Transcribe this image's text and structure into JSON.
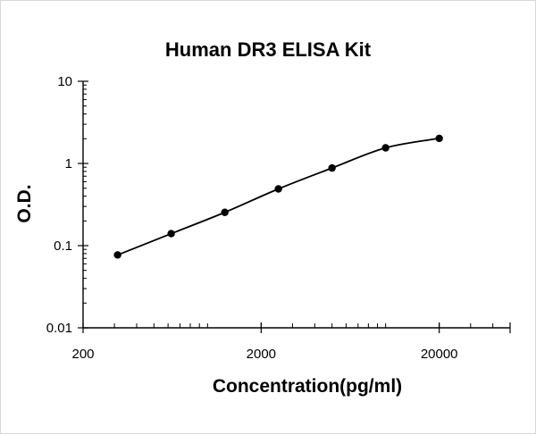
{
  "chart_data": {
    "type": "scatter",
    "title": "Human DR3 ELISA Kit",
    "xlabel": "Concentration(pg/ml)",
    "ylabel": "O.D.",
    "x_scale": "log",
    "y_scale": "log",
    "xlim": [
      200,
      50000
    ],
    "ylim": [
      0.01,
      10
    ],
    "x_ticks": [
      200,
      2000,
      20000
    ],
    "x_tick_labels": [
      "200",
      "2000",
      "20000"
    ],
    "y_ticks": [
      0.01,
      0.1,
      1,
      10
    ],
    "y_tick_labels": [
      "0.01",
      "0.1",
      "1",
      "10"
    ],
    "grid": false,
    "legend": "none",
    "colors": {
      "line": "#000000",
      "marker": "#000000",
      "axis": "#000000"
    },
    "series": [
      {
        "points": [
          {
            "x": 312.5,
            "y": 0.077
          },
          {
            "x": 625,
            "y": 0.14
          },
          {
            "x": 1250,
            "y": 0.254
          },
          {
            "x": 2500,
            "y": 0.49
          },
          {
            "x": 5000,
            "y": 0.88
          },
          {
            "x": 10000,
            "y": 1.55
          },
          {
            "x": 20000,
            "y": 2.02
          }
        ],
        "trendline": "smooth"
      }
    ]
  }
}
